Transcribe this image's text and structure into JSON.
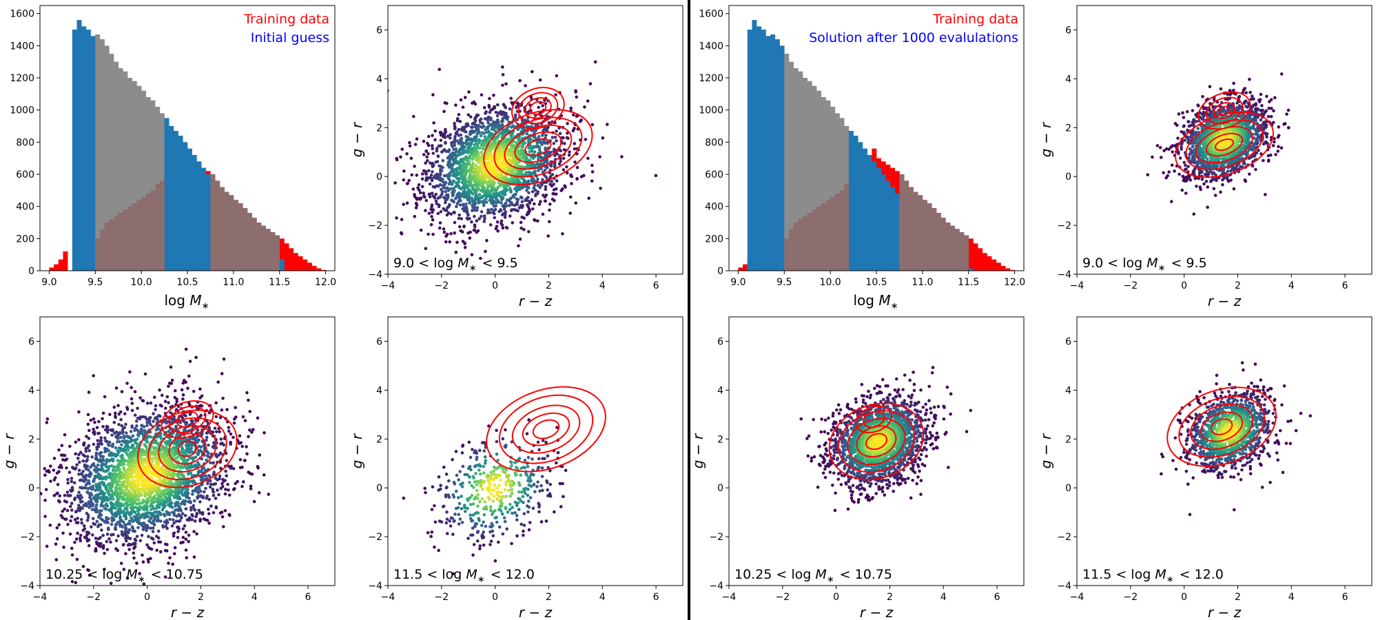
{
  "colors": {
    "training": "#ff0000",
    "model": "#1f77b4",
    "selected_gray": "#8c8c8c",
    "overlap": "#8c6e6e"
  },
  "groups": [
    {
      "legend": [
        "Training data",
        "Initial guess"
      ],
      "annotations": [
        "9.0 < log M_* < 9.5",
        "10.25 < log M_* < 10.75",
        "11.5 < log M_* < 12.0"
      ]
    },
    {
      "legend": [
        "Training data",
        "Solution after 1000 evalulations"
      ],
      "annotations": [
        "9.0 < log M_* < 9.5",
        "10.25 < log M_* < 10.75",
        "11.5 < log M_* < 12.0"
      ]
    }
  ],
  "chart_data": [
    {
      "type": "bar",
      "panel": "left histogram",
      "xlabel": "log M_*",
      "ylabel": "",
      "xlim": [
        8.9,
        12.1
      ],
      "ylim": [
        0,
        1650
      ],
      "xticks": [
        9.0,
        9.5,
        10.0,
        10.5,
        11.0,
        11.5,
        12.0
      ],
      "yticks": [
        0,
        200,
        400,
        600,
        800,
        1000,
        1200,
        1400,
        1600
      ],
      "bin_width": 0.05,
      "legend": [
        "Training data",
        "Initial guess"
      ],
      "series": [
        {
          "name": "Training data",
          "bin_start": 9.0,
          "values": [
            20,
            40,
            70,
            120,
            0,
            0,
            0,
            0,
            0,
            0,
            200,
            260,
            300,
            320,
            340,
            360,
            380,
            400,
            420,
            440,
            460,
            480,
            500,
            540,
            560,
            580,
            600,
            650,
            700,
            760,
            700,
            680,
            660,
            640,
            620,
            600,
            560,
            520,
            490,
            470,
            440,
            420,
            390,
            360,
            330,
            300,
            280,
            260,
            240,
            220,
            200,
            170,
            140,
            110,
            90,
            70,
            50,
            30,
            15,
            5
          ]
        },
        {
          "name": "Initial guess",
          "bin_start": 9.25,
          "values": [
            1500,
            1560,
            1520,
            1500,
            1460,
            1470,
            1440,
            1400,
            1350,
            1300,
            1260,
            1240,
            1200,
            1180,
            1150,
            1120,
            1080,
            1060,
            1020,
            980,
            950,
            900,
            870,
            840,
            800,
            760,
            720,
            680,
            640,
            600,
            560,
            520,
            480,
            440,
            400,
            370,
            340,
            310,
            280,
            250,
            220,
            190,
            160,
            130,
            100,
            70
          ]
        }
      ],
      "selected_ranges": [
        [
          9.5,
          10.25
        ],
        [
          10.75,
          11.5
        ]
      ]
    },
    {
      "type": "scatter",
      "panel": "left 9.0 < log M_* < 9.5",
      "xlabel": "r − z",
      "ylabel": "g − r",
      "xlim": [
        -4,
        7
      ],
      "ylim": [
        -4,
        7
      ],
      "xticks": [
        -4,
        -2,
        0,
        2,
        4,
        6
      ],
      "yticks": [
        -4,
        -2,
        0,
        2,
        4,
        6
      ],
      "annotation": "9.0 < log M_* < 9.5",
      "scatter": {
        "center": [
          0,
          0.5
        ],
        "std": [
          1.3,
          1.2
        ],
        "n": 2400
      },
      "contours": [
        {
          "center": [
            1.6,
            1.2
          ],
          "radii": [
            [
              2.1,
              1.4
            ],
            [
              1.7,
              1.1
            ],
            [
              1.3,
              0.8
            ],
            [
              0.9,
              0.55
            ],
            [
              0.5,
              0.3
            ]
          ]
        },
        {
          "center": [
            1.6,
            2.8
          ],
          "radii": [
            [
              1.0,
              0.8
            ],
            [
              0.75,
              0.6
            ],
            [
              0.5,
              0.4
            ],
            [
              0.3,
              0.25
            ]
          ]
        }
      ]
    },
    {
      "type": "scatter",
      "panel": "left 10.25 < log M_* < 10.75",
      "xlabel": "r − z",
      "ylabel": "g − r",
      "xlim": [
        -4,
        7
      ],
      "ylim": [
        -4,
        7
      ],
      "xticks": [
        -4,
        -2,
        0,
        2,
        4,
        6
      ],
      "yticks": [
        -4,
        -2,
        0,
        2,
        4,
        6
      ],
      "annotation": "10.25 < log M_* < 10.75",
      "scatter": {
        "center": [
          0,
          0.5
        ],
        "std": [
          1.5,
          1.4
        ],
        "n": 2800
      },
      "contours": [
        {
          "center": [
            1.5,
            1.6
          ],
          "radii": [
            [
              1.9,
              1.5
            ],
            [
              1.5,
              1.2
            ],
            [
              1.1,
              0.9
            ],
            [
              0.7,
              0.6
            ],
            [
              0.35,
              0.3
            ]
          ]
        },
        {
          "center": [
            1.5,
            2.8
          ],
          "radii": [
            [
              1.0,
              0.7
            ],
            [
              0.7,
              0.5
            ],
            [
              0.4,
              0.3
            ]
          ]
        }
      ]
    },
    {
      "type": "scatter",
      "panel": "left 11.5 < log M_* < 12.0",
      "xlabel": "r − z",
      "ylabel": "g − r",
      "xlim": [
        -4,
        7
      ],
      "ylim": [
        -4,
        7
      ],
      "xticks": [
        -4,
        -2,
        0,
        2,
        4,
        6
      ],
      "yticks": [
        -4,
        -2,
        0,
        2,
        4,
        6
      ],
      "annotation": "11.5 < log M_* < 12.0",
      "scatter": {
        "center": [
          0,
          0
        ],
        "std": [
          1.1,
          1.1
        ],
        "n": 450
      },
      "contours": [
        {
          "center": [
            1.9,
            2.4
          ],
          "radii": [
            [
              2.3,
              1.6
            ],
            [
              1.8,
              1.3
            ],
            [
              1.3,
              0.9
            ],
            [
              0.9,
              0.6
            ],
            [
              0.5,
              0.35
            ]
          ]
        }
      ]
    },
    {
      "type": "bar",
      "panel": "right histogram",
      "xlabel": "log M_*",
      "ylabel": "",
      "xlim": [
        8.9,
        12.1
      ],
      "ylim": [
        0,
        1650
      ],
      "xticks": [
        9.0,
        9.5,
        10.0,
        10.5,
        11.0,
        11.5,
        12.0
      ],
      "yticks": [
        0,
        200,
        400,
        600,
        800,
        1000,
        1200,
        1400,
        1600
      ],
      "bin_width": 0.05,
      "legend": [
        "Training data",
        "Solution after 1000 evalulations"
      ],
      "series": [
        {
          "name": "Training data",
          "bin_start": 9.0,
          "values": [
            20,
            40,
            70,
            120,
            0,
            0,
            0,
            0,
            0,
            0,
            200,
            260,
            300,
            320,
            340,
            360,
            380,
            400,
            420,
            440,
            460,
            480,
            500,
            540,
            560,
            580,
            600,
            650,
            700,
            760,
            700,
            680,
            660,
            640,
            620,
            600,
            560,
            520,
            490,
            470,
            440,
            420,
            390,
            360,
            330,
            300,
            280,
            260,
            240,
            220,
            200,
            170,
            140,
            110,
            90,
            70,
            50,
            30,
            15,
            5
          ]
        },
        {
          "name": "Solution after 1000 evalulations",
          "bin_start": 9.1,
          "values": [
            1500,
            1560,
            1520,
            1500,
            1460,
            1470,
            1440,
            1400,
            1350,
            1300,
            1260,
            1240,
            1200,
            1180,
            1150,
            1120,
            1080,
            1060,
            1020,
            980,
            950,
            900,
            870,
            840,
            800,
            760,
            720,
            680,
            640,
            600,
            560,
            520,
            480,
            440,
            400,
            370,
            340,
            310,
            280,
            250,
            220,
            190,
            160,
            130,
            100,
            70,
            50,
            30,
            15
          ]
        }
      ],
      "selected_ranges": [
        [
          9.5,
          10.2
        ],
        [
          10.75,
          11.5
        ]
      ]
    },
    {
      "type": "scatter",
      "panel": "right 9.0 < log M_* < 9.5",
      "xlabel": "r − z",
      "ylabel": "g − r",
      "xlim": [
        -4,
        7
      ],
      "ylim": [
        -4,
        7
      ],
      "xticks": [
        -4,
        -2,
        0,
        2,
        4,
        6
      ],
      "yticks": [
        -4,
        -2,
        0,
        2,
        4,
        6
      ],
      "annotation": "9.0 < log M_* < 9.5",
      "scatter": {
        "center": [
          1.5,
          1.5
        ],
        "std": [
          0.8,
          0.8
        ],
        "n": 1800
      },
      "contours": [
        {
          "center": [
            1.5,
            1.3
          ],
          "radii": [
            [
              1.9,
              1.2
            ],
            [
              1.5,
              0.9
            ],
            [
              1.1,
              0.65
            ],
            [
              0.7,
              0.4
            ],
            [
              0.35,
              0.2
            ]
          ]
        },
        {
          "center": [
            1.5,
            2.7
          ],
          "radii": [
            [
              1.0,
              0.7
            ],
            [
              0.7,
              0.5
            ],
            [
              0.4,
              0.3
            ],
            [
              0.2,
              0.15
            ]
          ]
        }
      ]
    },
    {
      "type": "scatter",
      "panel": "right 10.25 < log M_* < 10.75",
      "xlabel": "r − z",
      "ylabel": "g − r",
      "xlim": [
        -4,
        7
      ],
      "ylim": [
        -4,
        7
      ],
      "xticks": [
        -4,
        -2,
        0,
        2,
        4,
        6
      ],
      "yticks": [
        -4,
        -2,
        0,
        2,
        4,
        6
      ],
      "annotation": "10.25 < log M_* < 10.75",
      "scatter": {
        "center": [
          1.6,
          1.9
        ],
        "std": [
          0.9,
          0.9
        ],
        "n": 2000
      },
      "contours": [
        {
          "center": [
            1.5,
            1.9
          ],
          "radii": [
            [
              1.8,
              1.5
            ],
            [
              1.45,
              1.2
            ],
            [
              1.1,
              0.9
            ],
            [
              0.75,
              0.6
            ],
            [
              0.4,
              0.3
            ]
          ]
        },
        {
          "center": [
            1.4,
            2.8
          ],
          "radii": [
            [
              0.7,
              0.5
            ],
            [
              0.4,
              0.3
            ]
          ]
        }
      ]
    },
    {
      "type": "scatter",
      "panel": "right 11.5 < log M_* < 12.0",
      "xlabel": "r − z",
      "ylabel": "g − r",
      "xlim": [
        -4,
        7
      ],
      "ylim": [
        -4,
        7
      ],
      "xticks": [
        -4,
        -2,
        0,
        2,
        4,
        6
      ],
      "yticks": [
        -4,
        -2,
        0,
        2,
        4,
        6
      ],
      "annotation": "11.5 < log M_* < 12.0",
      "scatter": {
        "center": [
          1.7,
          2.3
        ],
        "std": [
          0.8,
          0.8
        ],
        "n": 1200
      },
      "contours": [
        {
          "center": [
            1.4,
            2.5
          ],
          "radii": [
            [
              2.1,
              1.5
            ],
            [
              1.65,
              1.15
            ],
            [
              1.2,
              0.85
            ],
            [
              0.8,
              0.55
            ],
            [
              0.4,
              0.3
            ]
          ]
        }
      ]
    }
  ]
}
